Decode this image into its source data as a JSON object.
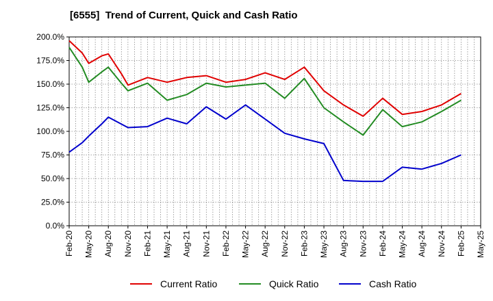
{
  "chart_data": {
    "type": "line",
    "title": "[6555]  Trend of Current, Quick and Cash Ratio",
    "xlabel": "",
    "ylabel": "",
    "ylim": [
      0,
      200
    ],
    "yticks": [
      0,
      25,
      50,
      75,
      100,
      125,
      150,
      175,
      200
    ],
    "ytick_labels": [
      "0.0%",
      "25.0%",
      "50.0%",
      "75.0%",
      "100.0%",
      "125.0%",
      "150.0%",
      "175.0%",
      "200.0%"
    ],
    "x_months": [
      "Feb-20",
      "Mar-20",
      "Apr-20",
      "May-20",
      "Jun-20",
      "Jul-20",
      "Aug-20",
      "Sep-20",
      "Oct-20",
      "Nov-20",
      "Dec-20",
      "Jan-21",
      "Feb-21",
      "Mar-21",
      "Apr-21",
      "May-21",
      "Jun-21",
      "Jul-21",
      "Aug-21",
      "Sep-21",
      "Oct-21",
      "Nov-21",
      "Dec-21",
      "Jan-22",
      "Feb-22",
      "Mar-22",
      "Apr-22",
      "May-22",
      "Jun-22",
      "Jul-22",
      "Aug-22",
      "Sep-22",
      "Oct-22",
      "Nov-22",
      "Dec-22",
      "Jan-23",
      "Feb-23",
      "Mar-23",
      "Apr-23",
      "May-23",
      "Jun-23",
      "Jul-23",
      "Aug-23",
      "Sep-23",
      "Oct-23",
      "Nov-23",
      "Dec-23",
      "Jan-24",
      "Feb-24",
      "Mar-24",
      "Apr-24",
      "May-24",
      "Jun-24",
      "Jul-24",
      "Aug-24",
      "Sep-24",
      "Oct-24",
      "Nov-24",
      "Dec-24",
      "Jan-25",
      "Feb-25",
      "Mar-25",
      "Apr-25",
      "May-25"
    ],
    "xtick_labels": [
      "Feb-20",
      "May-20",
      "Aug-20",
      "Nov-20",
      "Feb-21",
      "May-21",
      "Aug-21",
      "Nov-21",
      "Feb-22",
      "May-22",
      "Aug-22",
      "Nov-22",
      "Feb-23",
      "May-23",
      "Aug-23",
      "Nov-23",
      "Feb-24",
      "May-24",
      "Aug-24",
      "Nov-24",
      "Feb-25",
      "May-25"
    ],
    "grid": true,
    "legend_position": "bottom",
    "series": [
      {
        "name": "Current Ratio",
        "color": "#e00000",
        "x": [
          "Feb-20",
          "Apr-20",
          "May-20",
          "Jul-20",
          "Aug-20",
          "Oct-20",
          "Nov-20",
          "Feb-21",
          "May-21",
          "Aug-21",
          "Nov-21",
          "Feb-22",
          "May-22",
          "Aug-22",
          "Nov-22",
          "Feb-23",
          "May-23",
          "Aug-23",
          "Nov-23",
          "Feb-24",
          "May-24",
          "Aug-24",
          "Nov-24",
          "Feb-25"
        ],
        "values": [
          196,
          183,
          172,
          180,
          182,
          161,
          149,
          157,
          152,
          157,
          159,
          152,
          155,
          162,
          155,
          168,
          143,
          128,
          116,
          135,
          118,
          121,
          128,
          140
        ]
      },
      {
        "name": "Quick Ratio",
        "color": "#228b22",
        "x": [
          "Feb-20",
          "Apr-20",
          "May-20",
          "Jul-20",
          "Aug-20",
          "Oct-20",
          "Nov-20",
          "Feb-21",
          "May-21",
          "Aug-21",
          "Nov-21",
          "Feb-22",
          "May-22",
          "Aug-22",
          "Nov-22",
          "Feb-23",
          "May-23",
          "Aug-23",
          "Nov-23",
          "Feb-24",
          "May-24",
          "Aug-24",
          "Nov-24",
          "Feb-25"
        ],
        "values": [
          189,
          168,
          152,
          163,
          168,
          151,
          143,
          151,
          133,
          139,
          151,
          147,
          149,
          151,
          135,
          156,
          125,
          110,
          96,
          123,
          105,
          110,
          121,
          133
        ]
      },
      {
        "name": "Cash Ratio",
        "color": "#0000cc",
        "x": [
          "Feb-20",
          "Apr-20",
          "May-20",
          "Jul-20",
          "Aug-20",
          "Nov-20",
          "Feb-21",
          "May-21",
          "Aug-21",
          "Nov-21",
          "Feb-22",
          "May-22",
          "Aug-22",
          "Nov-22",
          "Feb-23",
          "May-23",
          "Aug-23",
          "Nov-23",
          "Feb-24",
          "May-24",
          "Aug-24",
          "Nov-24",
          "Feb-25"
        ],
        "values": [
          78,
          88,
          95,
          108,
          115,
          104,
          105,
          114,
          108,
          126,
          113,
          128,
          113,
          98,
          92,
          87,
          48,
          47,
          47,
          62,
          60,
          66,
          75
        ]
      }
    ]
  }
}
